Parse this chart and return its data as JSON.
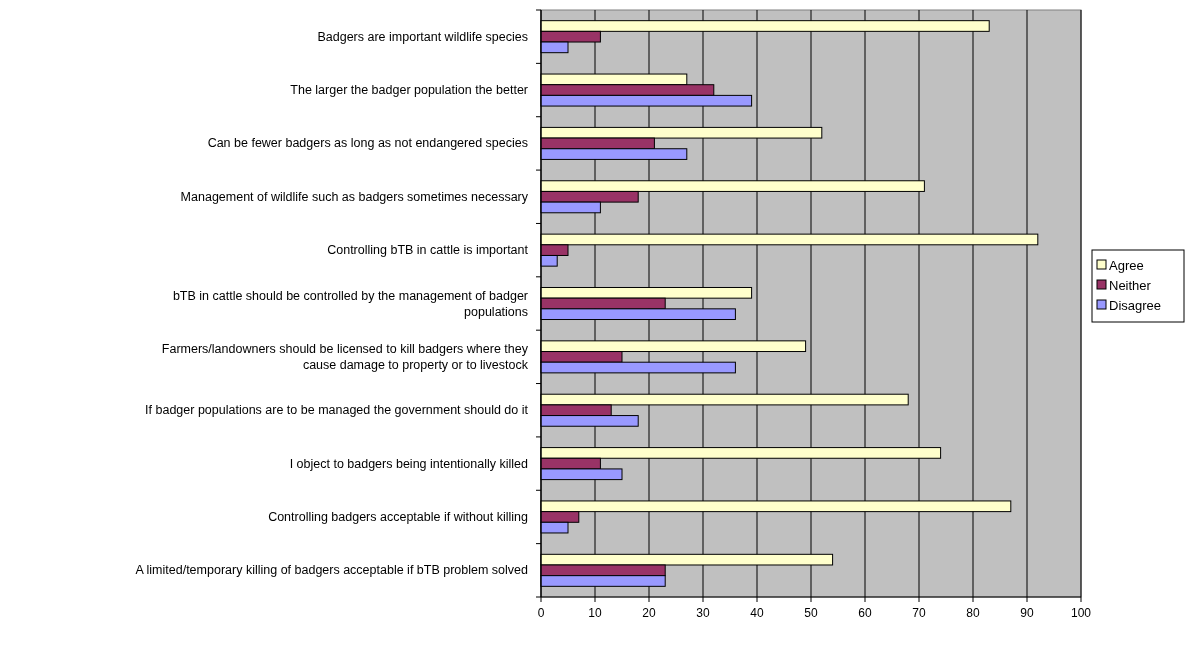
{
  "chart_data": {
    "type": "bar",
    "orientation": "horizontal",
    "categories": [
      "Badgers are important wildlife species",
      "The larger the badger population the better",
      "Can be fewer badgers as long as not endangered species",
      "Management of wildlife such as badgers sometimes necessary",
      "Controlling bTB in cattle is important",
      "bTB in cattle should be controlled by the management of badger\npopulations",
      "Farmers/landowners should be licensed to kill badgers where they\ncause damage to property or to livestock",
      "If badger populations are to be managed the government should do it",
      "I object to badgers being intentionally killed",
      "Controlling badgers acceptable if without killing",
      "A limited/temporary killing of badgers acceptable if bTB problem solved"
    ],
    "series": [
      {
        "name": "Agree",
        "color": "#ffffcc",
        "values": [
          83,
          27,
          52,
          71,
          92,
          39,
          49,
          68,
          74,
          87,
          54
        ]
      },
      {
        "name": "Neither",
        "color": "#993366",
        "values": [
          11,
          32,
          21,
          18,
          5,
          23,
          15,
          13,
          11,
          7,
          23
        ]
      },
      {
        "name": "Disagree",
        "color": "#9999ff",
        "values": [
          5,
          39,
          27,
          11,
          3,
          36,
          36,
          18,
          15,
          5,
          23
        ]
      }
    ],
    "xlim": [
      0,
      100
    ],
    "xticks": [
      0,
      10,
      20,
      30,
      40,
      50,
      60,
      70,
      80,
      90,
      100
    ],
    "grid": "x",
    "legend": "right"
  }
}
